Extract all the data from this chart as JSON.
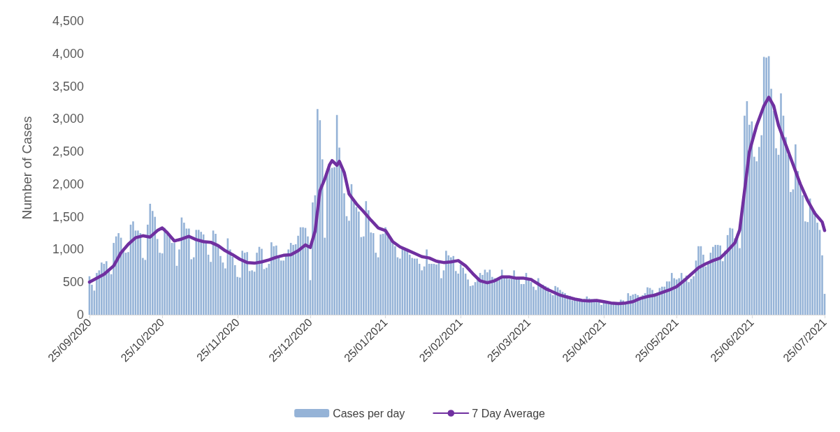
{
  "chart_data": {
    "type": "bar",
    "ylabel": "Number of Cases",
    "legend": "bottom",
    "grid": false,
    "xlim": [
      "2020-09-25",
      "2021-07-25"
    ],
    "xticks": [
      {
        "value": "2020-09-25",
        "label": "25/09/2020"
      },
      {
        "value": "2020-10-25",
        "label": "25/10/2020"
      },
      {
        "value": "2020-11-25",
        "label": "25/11/2020"
      },
      {
        "value": "2020-12-25",
        "label": "25/12/2020"
      },
      {
        "value": "2021-01-25",
        "label": "25/01/2021"
      },
      {
        "value": "2021-02-25",
        "label": "25/02/2021"
      },
      {
        "value": "2021-03-25",
        "label": "25/03/2021"
      },
      {
        "value": "2021-04-25",
        "label": "25/04/2021"
      },
      {
        "value": "2021-05-25",
        "label": "25/05/2021"
      },
      {
        "value": "2021-06-25",
        "label": "25/06/2021"
      },
      {
        "value": "2021-07-25",
        "label": "25/07/2021"
      }
    ],
    "ylim": [
      0,
      4500
    ],
    "yticks": [
      0,
      {
        "value": 500,
        "label": "500"
      },
      {
        "value": 1000,
        "label": "1,000"
      },
      {
        "value": 1500,
        "label": "1,500"
      },
      {
        "value": 2000,
        "label": "2,000"
      },
      {
        "value": 2500,
        "label": "2,500"
      },
      {
        "value": 3000,
        "label": "3,000"
      },
      {
        "value": 3500,
        "label": "3,500"
      },
      {
        "value": 4000,
        "label": "4,000"
      },
      {
        "value": 4500,
        "label": "4,500"
      }
    ],
    "series": [
      {
        "name": "Cases per day",
        "color": "#95b3d7",
        "x": [
          "2020-09-25",
          "2020-09-26",
          "2020-09-27",
          "2020-09-28",
          "2020-09-29",
          "2020-09-30",
          "2020-10-01",
          "2020-10-02",
          "2020-10-03",
          "2020-10-04",
          "2020-10-05",
          "2020-10-06",
          "2020-10-07",
          "2020-10-08",
          "2020-10-09",
          "2020-10-10",
          "2020-10-11",
          "2020-10-12",
          "2020-10-13",
          "2020-10-14",
          "2020-10-15",
          "2020-10-16",
          "2020-10-17",
          "2020-10-18",
          "2020-10-19",
          "2020-10-20",
          "2020-10-21",
          "2020-10-22",
          "2020-10-23",
          "2020-10-24",
          "2020-10-25",
          "2020-10-26",
          "2020-10-27",
          "2020-10-28",
          "2020-10-29",
          "2020-10-30",
          "2020-10-31",
          "2020-11-01",
          "2020-11-02",
          "2020-11-03",
          "2020-11-04",
          "2020-11-05",
          "2020-11-06",
          "2020-11-07",
          "2020-11-08",
          "2020-11-09",
          "2020-11-10",
          "2020-11-11",
          "2020-11-12",
          "2020-11-13",
          "2020-11-14",
          "2020-11-15",
          "2020-11-16",
          "2020-11-17",
          "2020-11-18",
          "2020-11-19",
          "2020-11-20",
          "2020-11-21",
          "2020-11-22",
          "2020-11-23",
          "2020-11-24",
          "2020-11-25",
          "2020-11-26",
          "2020-11-27",
          "2020-11-28",
          "2020-11-29",
          "2020-11-30",
          "2020-12-01",
          "2020-12-02",
          "2020-12-03",
          "2020-12-04",
          "2020-12-05",
          "2020-12-06",
          "2020-12-07",
          "2020-12-08",
          "2020-12-09",
          "2020-12-10",
          "2020-12-11",
          "2020-12-12",
          "2020-12-13",
          "2020-12-14",
          "2020-12-15",
          "2020-12-16",
          "2020-12-17",
          "2020-12-18",
          "2020-12-19",
          "2020-12-20",
          "2020-12-21",
          "2020-12-22",
          "2020-12-23",
          "2020-12-24",
          "2020-12-25",
          "2020-12-26",
          "2020-12-27",
          "2020-12-28",
          "2020-12-29",
          "2020-12-30",
          "2020-12-31",
          "2021-01-01",
          "2021-01-02",
          "2021-01-03",
          "2021-01-04",
          "2021-01-05",
          "2021-01-06",
          "2021-01-07",
          "2021-01-08",
          "2021-01-09",
          "2021-01-10",
          "2021-01-11",
          "2021-01-12",
          "2021-01-13",
          "2021-01-14",
          "2021-01-15",
          "2021-01-16",
          "2021-01-17",
          "2021-01-18",
          "2021-01-19",
          "2021-01-20",
          "2021-01-21",
          "2021-01-22",
          "2021-01-23",
          "2021-01-24",
          "2021-01-25",
          "2021-01-26",
          "2021-01-27",
          "2021-01-28",
          "2021-01-29",
          "2021-01-30",
          "2021-01-31",
          "2021-02-01",
          "2021-02-02",
          "2021-02-03",
          "2021-02-04",
          "2021-02-05",
          "2021-02-06",
          "2021-02-07",
          "2021-02-08",
          "2021-02-09",
          "2021-02-10",
          "2021-02-11",
          "2021-02-12",
          "2021-02-13",
          "2021-02-14",
          "2021-02-15",
          "2021-02-16",
          "2021-02-17",
          "2021-02-18",
          "2021-02-19",
          "2021-02-20",
          "2021-02-21",
          "2021-02-22",
          "2021-02-23",
          "2021-02-24",
          "2021-02-25",
          "2021-02-26",
          "2021-02-27",
          "2021-02-28",
          "2021-03-01",
          "2021-03-02",
          "2021-03-03",
          "2021-03-04",
          "2021-03-05",
          "2021-03-06",
          "2021-03-07",
          "2021-03-08",
          "2021-03-09",
          "2021-03-10",
          "2021-03-11",
          "2021-03-12",
          "2021-03-13",
          "2021-03-14",
          "2021-03-15",
          "2021-03-16",
          "2021-03-17",
          "2021-03-18",
          "2021-03-19",
          "2021-03-20",
          "2021-03-21",
          "2021-03-22",
          "2021-03-23",
          "2021-03-24",
          "2021-03-25",
          "2021-03-26",
          "2021-03-27",
          "2021-03-28",
          "2021-03-29",
          "2021-03-30",
          "2021-03-31",
          "2021-04-01",
          "2021-04-02",
          "2021-04-03",
          "2021-04-04",
          "2021-04-05",
          "2021-04-06",
          "2021-04-07",
          "2021-04-08",
          "2021-04-09",
          "2021-04-10",
          "2021-04-11",
          "2021-04-12",
          "2021-04-13",
          "2021-04-14",
          "2021-04-15",
          "2021-04-16",
          "2021-04-17",
          "2021-04-18",
          "2021-04-19",
          "2021-04-20",
          "2021-04-21",
          "2021-04-22",
          "2021-04-23",
          "2021-04-24",
          "2021-04-25",
          "2021-04-26",
          "2021-04-27",
          "2021-04-28",
          "2021-04-29",
          "2021-04-30",
          "2021-05-01",
          "2021-05-02",
          "2021-05-03",
          "2021-05-04",
          "2021-05-05",
          "2021-05-06",
          "2021-05-07",
          "2021-05-08",
          "2021-05-09",
          "2021-05-10",
          "2021-05-11",
          "2021-05-12",
          "2021-05-13",
          "2021-05-14",
          "2021-05-15",
          "2021-05-16",
          "2021-05-17",
          "2021-05-18",
          "2021-05-19",
          "2021-05-20",
          "2021-05-21",
          "2021-05-22",
          "2021-05-23",
          "2021-05-24",
          "2021-05-25",
          "2021-05-26",
          "2021-05-27",
          "2021-05-28",
          "2021-05-29",
          "2021-05-30",
          "2021-05-31",
          "2021-06-01",
          "2021-06-02",
          "2021-06-03",
          "2021-06-04",
          "2021-06-05",
          "2021-06-06",
          "2021-06-07",
          "2021-06-08",
          "2021-06-09",
          "2021-06-10",
          "2021-06-11",
          "2021-06-12",
          "2021-06-13",
          "2021-06-14",
          "2021-06-15",
          "2021-06-16",
          "2021-06-17",
          "2021-06-18",
          "2021-06-19",
          "2021-06-20",
          "2021-06-21",
          "2021-06-22",
          "2021-06-23",
          "2021-06-24",
          "2021-06-25",
          "2021-06-26",
          "2021-06-27",
          "2021-06-28",
          "2021-06-29",
          "2021-06-30",
          "2021-07-01",
          "2021-07-02",
          "2021-07-03",
          "2021-07-04",
          "2021-07-05",
          "2021-07-06",
          "2021-07-07",
          "2021-07-08",
          "2021-07-09",
          "2021-07-10",
          "2021-07-11",
          "2021-07-12",
          "2021-07-13",
          "2021-07-14",
          "2021-07-15",
          "2021-07-16",
          "2021-07-17",
          "2021-07-18",
          "2021-07-19",
          "2021-07-20",
          "2021-07-21",
          "2021-07-22",
          "2021-07-23",
          "2021-07-24",
          "2021-07-25"
        ],
        "values": [
          590,
          460,
          370,
          640,
          680,
          800,
          780,
          820,
          700,
          620,
          1100,
          1200,
          1250,
          1180,
          1000,
          950,
          960,
          1380,
          1430,
          1290,
          1290,
          1250,
          870,
          840,
          1380,
          1700,
          1590,
          1500,
          1160,
          950,
          940,
          1330,
          1270,
          1200,
          1100,
          1100,
          750,
          1000,
          1490,
          1410,
          1320,
          1320,
          850,
          880,
          1300,
          1300,
          1270,
          1230,
          1120,
          920,
          810,
          1290,
          1240,
          1040,
          900,
          800,
          710,
          1170,
          1000,
          890,
          760,
          580,
          570,
          980,
          950,
          960,
          670,
          680,
          660,
          950,
          1040,
          1010,
          700,
          720,
          780,
          1110,
          1050,
          1060,
          870,
          830,
          830,
          920,
          1000,
          1100,
          1070,
          1080,
          1210,
          1340,
          1340,
          1330,
          1200,
          530,
          1720,
          1830,
          3150,
          2980,
          2380,
          1180,
          2230,
          2240,
          2250,
          2260,
          3060,
          2560,
          2220,
          1860,
          1510,
          1440,
          2000,
          1720,
          1650,
          1580,
          1190,
          1200,
          1740,
          1600,
          1260,
          1250,
          950,
          880,
          1230,
          1240,
          1340,
          1220,
          1150,
          1120,
          1050,
          880,
          860,
          1030,
          1010,
          1000,
          920,
          870,
          860,
          860,
          780,
          680,
          740,
          1000,
          780,
          780,
          780,
          770,
          830,
          560,
          680,
          980,
          910,
          880,
          900,
          670,
          630,
          770,
          720,
          630,
          540,
          440,
          450,
          500,
          540,
          640,
          610,
          690,
          650,
          690,
          580,
          560,
          530,
          550,
          690,
          590,
          580,
          550,
          550,
          680,
          560,
          560,
          470,
          470,
          640,
          560,
          500,
          430,
          380,
          560,
          470,
          460,
          440,
          420,
          330,
          300,
          440,
          420,
          380,
          350,
          330,
          300,
          290,
          220,
          250,
          240,
          250,
          230,
          240,
          280,
          250,
          240,
          240,
          220,
          200,
          150,
          200,
          180,
          180,
          190,
          190,
          180,
          190,
          230,
          220,
          200,
          330,
          290,
          310,
          320,
          300,
          270,
          300,
          330,
          420,
          410,
          380,
          330,
          340,
          410,
          430,
          430,
          510,
          510,
          640,
          560,
          540,
          560,
          640,
          560,
          600,
          500,
          550,
          590,
          830,
          1050,
          1050,
          920,
          740,
          810,
          950,
          1040,
          1070,
          1070,
          1060,
          820,
          980,
          1220,
          1330,
          1320,
          1170,
          1240,
          1020,
          1580,
          3050,
          3270,
          2910,
          2960,
          2420,
          2350,
          2570,
          2750,
          3950,
          3940,
          3960,
          3460,
          3120,
          2550,
          2450,
          3390,
          3050,
          2720,
          2450,
          1880,
          1920,
          2610,
          2200,
          2020,
          1830,
          1430,
          1420,
          1780,
          1630,
          1590,
          1410,
          1300,
          910,
          320
        ]
      },
      {
        "name": "7 Day Average",
        "type": "line",
        "color": "#7030a0",
        "x": [
          "2020-09-25",
          "2020-10-01",
          "2020-10-05",
          "2020-10-08",
          "2020-10-11",
          "2020-10-14",
          "2020-10-17",
          "2020-10-20",
          "2020-10-23",
          "2020-10-25",
          "2020-10-27",
          "2020-10-30",
          "2020-11-02",
          "2020-11-05",
          "2020-11-08",
          "2020-11-11",
          "2020-11-14",
          "2020-11-17",
          "2020-11-20",
          "2020-11-23",
          "2020-11-26",
          "2020-11-29",
          "2020-12-02",
          "2020-12-05",
          "2020-12-08",
          "2020-12-11",
          "2020-12-14",
          "2020-12-17",
          "2020-12-20",
          "2020-12-23",
          "2020-12-25",
          "2020-12-27",
          "2020-12-29",
          "2020-12-31",
          "2021-01-02",
          "2021-01-03",
          "2021-01-05",
          "2021-01-06",
          "2021-01-08",
          "2021-01-10",
          "2021-01-13",
          "2021-01-16",
          "2021-01-19",
          "2021-01-22",
          "2021-01-25",
          "2021-01-28",
          "2021-01-31",
          "2021-02-03",
          "2021-02-06",
          "2021-02-09",
          "2021-02-12",
          "2021-02-15",
          "2021-02-18",
          "2021-02-21",
          "2021-02-24",
          "2021-02-27",
          "2021-03-02",
          "2021-03-05",
          "2021-03-08",
          "2021-03-11",
          "2021-03-14",
          "2021-03-17",
          "2021-03-20",
          "2021-03-23",
          "2021-03-26",
          "2021-03-29",
          "2021-04-01",
          "2021-04-04",
          "2021-04-07",
          "2021-04-10",
          "2021-04-13",
          "2021-04-16",
          "2021-04-19",
          "2021-04-22",
          "2021-04-25",
          "2021-04-28",
          "2021-05-01",
          "2021-05-04",
          "2021-05-07",
          "2021-05-10",
          "2021-05-13",
          "2021-05-16",
          "2021-05-19",
          "2021-05-22",
          "2021-05-25",
          "2021-05-28",
          "2021-05-31",
          "2021-06-03",
          "2021-06-06",
          "2021-06-09",
          "2021-06-12",
          "2021-06-15",
          "2021-06-18",
          "2021-06-20",
          "2021-06-22",
          "2021-06-24",
          "2021-06-27",
          "2021-06-30",
          "2021-07-02",
          "2021-07-04",
          "2021-07-06",
          "2021-07-09",
          "2021-07-12",
          "2021-07-15",
          "2021-07-18",
          "2021-07-21",
          "2021-07-24",
          "2021-07-25"
        ],
        "values": [
          500,
          620,
          750,
          950,
          1080,
          1180,
          1210,
          1190,
          1290,
          1330,
          1260,
          1130,
          1160,
          1200,
          1150,
          1120,
          1110,
          1060,
          980,
          920,
          850,
          800,
          790,
          810,
          840,
          880,
          910,
          920,
          980,
          1070,
          1030,
          1280,
          1900,
          2080,
          2300,
          2360,
          2290,
          2350,
          2180,
          1850,
          1700,
          1580,
          1450,
          1330,
          1290,
          1120,
          1040,
          990,
          940,
          890,
          870,
          820,
          800,
          810,
          830,
          750,
          630,
          520,
          490,
          520,
          580,
          580,
          560,
          560,
          540,
          470,
          400,
          350,
          300,
          270,
          240,
          220,
          210,
          220,
          200,
          180,
          170,
          180,
          200,
          250,
          280,
          300,
          340,
          380,
          430,
          520,
          620,
          720,
          780,
          830,
          870,
          980,
          1100,
          1300,
          1900,
          2500,
          2900,
          3200,
          3330,
          3200,
          2900,
          2600,
          2300,
          2000,
          1750,
          1550,
          1420,
          1290
        ]
      }
    ]
  }
}
